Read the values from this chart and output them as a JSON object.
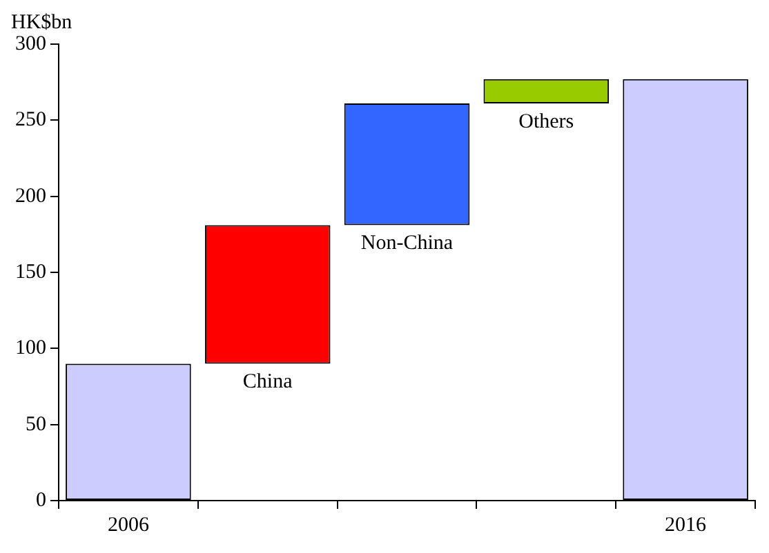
{
  "chart_data": {
    "type": "bar",
    "ylabel": "HK$bn",
    "categories": [
      "2006",
      null,
      null,
      null,
      "2016"
    ],
    "values": [
      90,
      91,
      80,
      16,
      277
    ],
    "base": [
      0,
      90,
      181,
      261,
      0
    ],
    "colors": [
      "#ccccff",
      "#ff0000",
      "#3366ff",
      "#99cc00",
      "#ccccff"
    ],
    "ylim": [
      0,
      300
    ],
    "yticks": [
      0,
      50,
      100,
      150,
      200,
      250,
      300
    ],
    "grid": false,
    "legend": false,
    "annotations": [
      {
        "text": "China",
        "y": 90
      },
      {
        "text": "Non-China",
        "y": 181
      },
      {
        "text": "Others",
        "y": 261
      }
    ]
  }
}
